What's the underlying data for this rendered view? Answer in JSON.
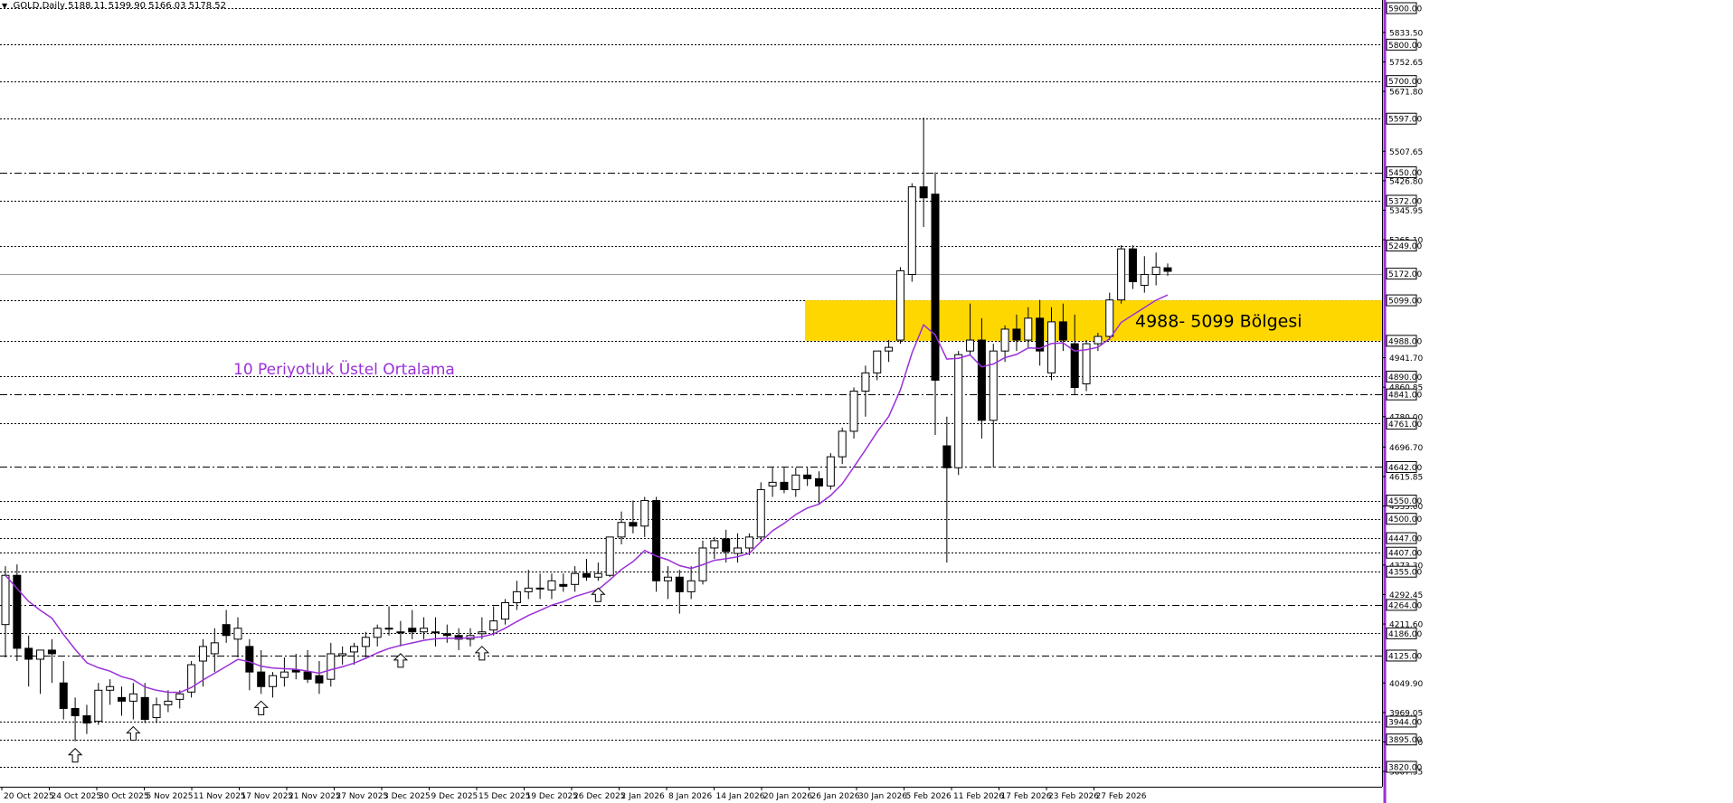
{
  "title": ".GOLD,Daily  5188.11 5199.90 5166.03 5178.52",
  "colors": {
    "ema": "#9b30d9",
    "zone": "#ffd700",
    "candle": "#000000",
    "border": "#9b30d9"
  },
  "annotations": {
    "zone_label": "4988- 5099 Bölgesi",
    "ema_label": "10 Periyotluk Üstel Ortalama"
  },
  "chart_data": {
    "type": "candlestick",
    "symbol": ".GOLD",
    "timeframe": "Daily",
    "ohlc_header": [
      5188.11,
      5199.9,
      5166.03,
      5178.52
    ],
    "ylim": [
      3810,
      5910
    ],
    "x_tick_labels": [
      "20 Oct 2025",
      "24 Oct 2025",
      "30 Oct 2025",
      "5 Nov 2025",
      "11 Nov 2025",
      "17 Nov 2025",
      "21 Nov 2025",
      "27 Nov 2025",
      "3 Dec 2025",
      "9 Dec 2025",
      "15 Dec 2025",
      "19 Dec 2025",
      "26 Dec 2025",
      "2 Jan 2026",
      "8 Jan 2026",
      "14 Jan 2026",
      "20 Jan 2026",
      "26 Jan 2026",
      "30 Jan 2026",
      "5 Feb 2026",
      "11 Feb 2026",
      "17 Feb 2026",
      "23 Feb 2026",
      "27 Feb 2026"
    ],
    "y_tick_labels": [
      5833.5,
      5752.65,
      5671.8,
      5507.65,
      5426.8,
      5345.95,
      5265.1,
      4941.7,
      4860.85,
      4780.0,
      4696.7,
      4615.85,
      4535.0,
      4373.3,
      4292.45,
      4211.6,
      4049.9,
      3969.05,
      3888.2,
      3807.35
    ],
    "levels": [
      {
        "value": 5900.0,
        "style": "dotted"
      },
      {
        "value": 5800.0,
        "style": "dotted"
      },
      {
        "value": 5700.0,
        "style": "dotted"
      },
      {
        "value": 5597.0,
        "style": "dotted"
      },
      {
        "value": 5450.0,
        "style": "dashdot"
      },
      {
        "value": 5372.0,
        "style": "dotted"
      },
      {
        "value": 5249.0,
        "style": "dotted"
      },
      {
        "value": 5172.0,
        "style": "solid"
      },
      {
        "value": 5099.0,
        "style": "dotted"
      },
      {
        "value": 4988.0,
        "style": "dotted"
      },
      {
        "value": 4890.0,
        "style": "dotted"
      },
      {
        "value": 4841.0,
        "style": "dashdot"
      },
      {
        "value": 4761.0,
        "style": "dotted"
      },
      {
        "value": 4642.0,
        "style": "dashdot"
      },
      {
        "value": 4550.0,
        "style": "dotted"
      },
      {
        "value": 4500.0,
        "style": "dotted"
      },
      {
        "value": 4447.0,
        "style": "dotted"
      },
      {
        "value": 4407.0,
        "style": "dotted"
      },
      {
        "value": 4355.0,
        "style": "dotted"
      },
      {
        "value": 4264.0,
        "style": "dashdot"
      },
      {
        "value": 4186.0,
        "style": "dotted"
      },
      {
        "value": 4125.0,
        "style": "dashdot"
      },
      {
        "value": 3944.0,
        "style": "dotted"
      },
      {
        "value": 3895.0,
        "style": "dotted"
      },
      {
        "value": 3820.0,
        "style": "dotted"
      }
    ],
    "zone": {
      "low": 4988.0,
      "high": 5099.0
    },
    "arrow_bars": [
      6,
      11,
      22,
      34,
      41,
      51
    ],
    "candles": [
      [
        4210,
        4370,
        4120,
        4345
      ],
      [
        4345,
        4375,
        4110,
        4145
      ],
      [
        4145,
        4180,
        4040,
        4115
      ],
      [
        4115,
        4140,
        4020,
        4140
      ],
      [
        4140,
        4170,
        4050,
        4130
      ],
      [
        4050,
        4110,
        3950,
        3980
      ],
      [
        3980,
        4010,
        3890,
        3960
      ],
      [
        3960,
        3990,
        3910,
        3940
      ],
      [
        3945,
        4050,
        3935,
        4030
      ],
      [
        4030,
        4060,
        3990,
        4040
      ],
      [
        4010,
        4040,
        3960,
        4000
      ],
      [
        4000,
        4050,
        3950,
        4020
      ],
      [
        4010,
        4050,
        3940,
        3950
      ],
      [
        3955,
        4010,
        3940,
        3990
      ],
      [
        3990,
        4030,
        3970,
        4000
      ],
      [
        4005,
        4030,
        3980,
        4020
      ],
      [
        4025,
        4110,
        4010,
        4100
      ],
      [
        4110,
        4170,
        4040,
        4150
      ],
      [
        4130,
        4200,
        4080,
        4160
      ],
      [
        4210,
        4250,
        4160,
        4180
      ],
      [
        4170,
        4230,
        4120,
        4200
      ],
      [
        4150,
        4170,
        4030,
        4080
      ],
      [
        4080,
        4140,
        4020,
        4040
      ],
      [
        4040,
        4080,
        4010,
        4070
      ],
      [
        4065,
        4120,
        4040,
        4080
      ],
      [
        4085,
        4130,
        4060,
        4080
      ],
      [
        4080,
        4140,
        4050,
        4060
      ],
      [
        4070,
        4110,
        4020,
        4050
      ],
      [
        4060,
        4160,
        4040,
        4130
      ],
      [
        4125,
        4150,
        4100,
        4130
      ],
      [
        4135,
        4160,
        4100,
        4150
      ],
      [
        4150,
        4190,
        4120,
        4175
      ],
      [
        4175,
        4210,
        4150,
        4200
      ],
      [
        4200,
        4260,
        4180,
        4200
      ],
      [
        4190,
        4220,
        4150,
        4190
      ],
      [
        4200,
        4250,
        4170,
        4190
      ],
      [
        4190,
        4230,
        4170,
        4200
      ],
      [
        4190,
        4230,
        4150,
        4190
      ],
      [
        4185,
        4210,
        4160,
        4180
      ],
      [
        4180,
        4200,
        4140,
        4170
      ],
      [
        4170,
        4200,
        4150,
        4180
      ],
      [
        4185,
        4230,
        4170,
        4190
      ],
      [
        4195,
        4260,
        4180,
        4220
      ],
      [
        4225,
        4280,
        4210,
        4270
      ],
      [
        4270,
        4330,
        4250,
        4300
      ],
      [
        4300,
        4360,
        4280,
        4310
      ],
      [
        4310,
        4350,
        4280,
        4310
      ],
      [
        4305,
        4350,
        4280,
        4330
      ],
      [
        4320,
        4350,
        4300,
        4315
      ],
      [
        4320,
        4370,
        4300,
        4350
      ],
      [
        4350,
        4390,
        4330,
        4340
      ],
      [
        4340,
        4380,
        4330,
        4350
      ],
      [
        4345,
        4450,
        4340,
        4450
      ],
      [
        4450,
        4520,
        4430,
        4490
      ],
      [
        4490,
        4550,
        4460,
        4480
      ],
      [
        4480,
        4560,
        4450,
        4550
      ],
      [
        4550,
        4560,
        4300,
        4330
      ],
      [
        4330,
        4370,
        4280,
        4340
      ],
      [
        4340,
        4360,
        4240,
        4300
      ],
      [
        4300,
        4370,
        4280,
        4330
      ],
      [
        4330,
        4440,
        4320,
        4420
      ],
      [
        4420,
        4450,
        4390,
        4440
      ],
      [
        4445,
        4470,
        4380,
        4410
      ],
      [
        4405,
        4460,
        4380,
        4420
      ],
      [
        4420,
        4460,
        4400,
        4450
      ],
      [
        4450,
        4600,
        4440,
        4580
      ],
      [
        4590,
        4640,
        4560,
        4600
      ],
      [
        4600,
        4640,
        4570,
        4580
      ],
      [
        4580,
        4640,
        4560,
        4620
      ],
      [
        4620,
        4640,
        4590,
        4610
      ],
      [
        4610,
        4630,
        4540,
        4590
      ],
      [
        4590,
        4680,
        4580,
        4670
      ],
      [
        4670,
        4750,
        4650,
        4740
      ],
      [
        4740,
        4860,
        4720,
        4850
      ],
      [
        4850,
        4920,
        4780,
        4900
      ],
      [
        4900,
        4960,
        4880,
        4960
      ],
      [
        4960,
        4990,
        4930,
        4970
      ],
      [
        4990,
        5190,
        4980,
        5180
      ],
      [
        5170,
        5420,
        5150,
        5410
      ],
      [
        5410,
        5600,
        5300,
        5380
      ],
      [
        5390,
        5450,
        4730,
        4880
      ],
      [
        4700,
        4780,
        4380,
        4640
      ],
      [
        4640,
        4960,
        4620,
        4950
      ],
      [
        4960,
        5090,
        4950,
        4990
      ],
      [
        4990,
        5050,
        4720,
        4770
      ],
      [
        4770,
        4980,
        4640,
        4960
      ],
      [
        4960,
        5030,
        4930,
        5020
      ],
      [
        5020,
        5060,
        4960,
        4990
      ],
      [
        4990,
        5080,
        4970,
        5050
      ],
      [
        5050,
        5100,
        4920,
        4960
      ],
      [
        4900,
        5080,
        4880,
        5040
      ],
      [
        5040,
        5090,
        4960,
        4990
      ],
      [
        4980,
        5060,
        4840,
        4860
      ],
      [
        4870,
        4990,
        4850,
        4980
      ],
      [
        4980,
        5010,
        4960,
        5000
      ],
      [
        5000,
        5120,
        4990,
        5100
      ],
      [
        5100,
        5250,
        5090,
        5240
      ],
      [
        5240,
        5250,
        5130,
        5150
      ],
      [
        5140,
        5220,
        5120,
        5170
      ],
      [
        5170,
        5230,
        5140,
        5190
      ],
      [
        5188.11,
        5199.9,
        5166.03,
        5178.52
      ]
    ]
  }
}
